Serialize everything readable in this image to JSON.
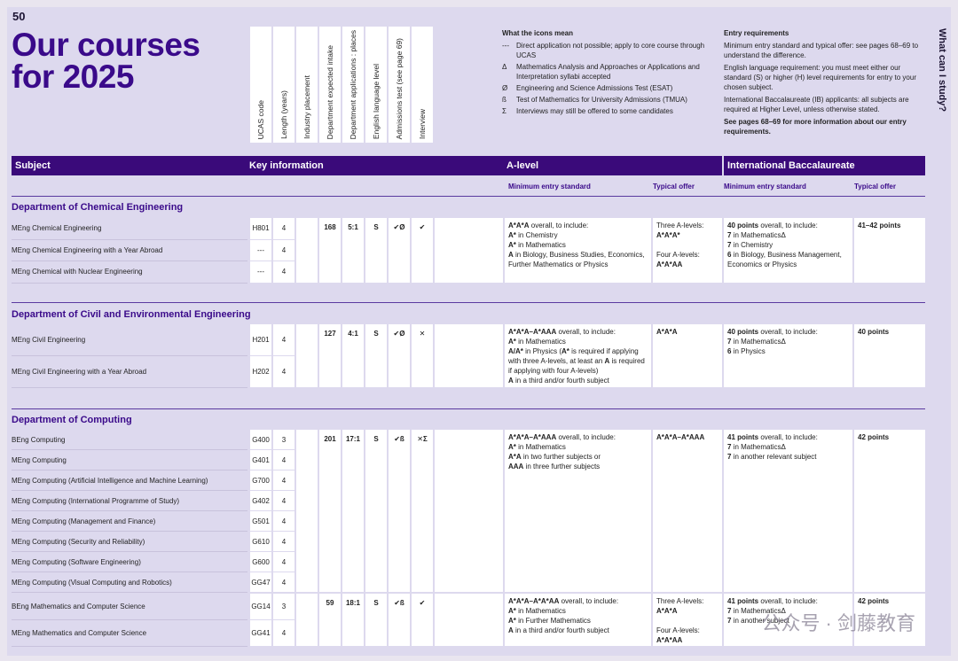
{
  "page_number": "50",
  "title_line1": "Our courses",
  "title_line2": "for 2025",
  "side_title": "What can I study?",
  "column_headers": [
    "UCAS code",
    "Length (years)",
    "Industry placement",
    "Department expected intake",
    "Department applications : places",
    "English language level",
    "Admissions test (see page 69)",
    "Interview"
  ],
  "legend": {
    "heading": "What the icons mean",
    "items": [
      {
        "sym": "---",
        "text": "Direct application not possible; apply to core course through UCAS"
      },
      {
        "sym": "Δ",
        "text": "Mathematics Analysis and Approaches or Applications and Interpretation syllabi accepted"
      },
      {
        "sym": "Ø",
        "text": "Engineering and Science Admissions Test (ESAT)"
      },
      {
        "sym": "ß",
        "text": "Test of Mathematics for University Admissions (TMUA)"
      },
      {
        "sym": "Σ",
        "text": "Interviews may still be offered to some candidates"
      }
    ]
  },
  "entry": {
    "heading": "Entry requirements",
    "p1": "Minimum entry standard and typical offer: see pages 68–69 to understand the difference.",
    "p2": "English language requirement: you must meet either our standard (S) or higher (H) level requirements for entry to your chosen subject.",
    "p3": "International Baccalaureate (IB) applicants: all subjects are required at Higher Level, unless otherwise stated.",
    "p4": "See pages 68–69 for more information about our entry requirements."
  },
  "bars": {
    "subject": "Subject",
    "key_info": "Key information",
    "a_level": "A-level",
    "ib": "International Baccalaureate",
    "min_std": "Minimum entry standard",
    "typ_offer": "Typical offer",
    "ib_min_std": "Minimum entry standard",
    "ib_typ_offer": "Typical offer"
  },
  "depts": [
    {
      "name": "Department of Chemical Engineering",
      "courses": [
        {
          "name": "MEng Chemical Engineering",
          "code": "H801",
          "len": "4"
        },
        {
          "name": "MEng Chemical Engineering with a Year Abroad",
          "code": "---",
          "len": "4"
        },
        {
          "name": "MEng Chemical with Nuclear Engineering",
          "code": "---",
          "len": "4"
        }
      ],
      "intake": "168",
      "ratio": "5:1",
      "eng": "S",
      "test": "✔Ø",
      "interview": "✔",
      "alevel_min": [
        [
          "A*A*A",
          " overall, to include:"
        ],
        [
          "A*",
          " in Chemistry"
        ],
        [
          "A*",
          " in Mathematics"
        ],
        [
          "A",
          " in Biology, Business Studies, Economics, Further Mathematics or Physics"
        ]
      ],
      "alevel_typ": [
        "Three A-levels:",
        "A*A*A*",
        "",
        "Four A-levels:",
        "A*A*AA"
      ],
      "ib_min": [
        [
          "40 points",
          " overall, to include:"
        ],
        [
          "7",
          " in MathematicsΔ"
        ],
        [
          "7",
          " in Chemistry"
        ],
        [
          "6",
          " in Biology, Business Management, Economics or Physics"
        ]
      ],
      "ib_typ": "41–42 points"
    },
    {
      "name": "Department of Civil and Environmental Engineering",
      "courses": [
        {
          "name": "MEng Civil Engineering",
          "code": "H201",
          "len": "4"
        },
        {
          "name": "MEng Civil Engineering with a Year Abroad",
          "code": "H202",
          "len": "4"
        }
      ],
      "intake": "127",
      "ratio": "4:1",
      "eng": "S",
      "test": "✔Ø",
      "interview": "✕",
      "alevel_min": [
        [
          "A*A*A–A*AAA",
          " overall, to include:"
        ],
        [
          "A*",
          " in Mathematics"
        ],
        [
          "A/A*",
          " in Physics ("
        ],
        [
          "A*",
          " is required if applying with three A-levels, at least an "
        ],
        [
          "A",
          " is required if applying with four A-levels)"
        ],
        [
          "A",
          " in a third and/or fourth subject"
        ]
      ],
      "alevel_typ": [
        "A*A*A"
      ],
      "ib_min": [
        [
          "40 points",
          " overall, to include:"
        ],
        [
          "7",
          " in MathematicsΔ"
        ],
        [
          "6",
          " in Physics"
        ]
      ],
      "ib_typ": "40 points"
    },
    {
      "name": "Department of Computing",
      "courses": [
        {
          "name": "BEng Computing",
          "code": "G400",
          "len": "3"
        },
        {
          "name": "MEng Computing",
          "code": "G401",
          "len": "4"
        },
        {
          "name": "MEng Computing (Artificial Intelligence and Machine Learning)",
          "code": "G700",
          "len": "4"
        },
        {
          "name": "MEng Computing (International Programme of Study)",
          "code": "G402",
          "len": "4"
        },
        {
          "name": "MEng Computing (Management and Finance)",
          "code": "G501",
          "len": "4"
        },
        {
          "name": "MEng Computing (Security and Reliability)",
          "code": "G610",
          "len": "4"
        },
        {
          "name": "MEng Computing (Software Engineering)",
          "code": "G600",
          "len": "4"
        },
        {
          "name": "MEng Computing (Visual Computing and Robotics)",
          "code": "GG47",
          "len": "4"
        }
      ],
      "intake": "201",
      "ratio": "17:1",
      "eng": "S",
      "test": "✔ß",
      "interview": "✕Σ",
      "alevel_min": [
        [
          "A*A*A–A*AAA",
          " overall, to include:"
        ],
        [
          "A*",
          " in Mathematics"
        ],
        [
          "A*A",
          " in two further subjects or"
        ],
        [
          "AAA",
          " in three further subjects"
        ]
      ],
      "alevel_typ": [
        "A*A*A–A*AAA"
      ],
      "ib_min": [
        [
          "41 points",
          " overall, to include:"
        ],
        [
          "7",
          " in MathematicsΔ"
        ],
        [
          "7",
          " in another relevant subject"
        ]
      ],
      "ib_typ": "42 points"
    },
    {
      "name": "",
      "courses": [
        {
          "name": "BEng Mathematics and Computer Science",
          "code": "GG14",
          "len": "3"
        },
        {
          "name": "MEng Mathematics and Computer Science",
          "code": "GG41",
          "len": "4"
        }
      ],
      "intake": "59",
      "ratio": "18:1",
      "eng": "S",
      "test": "✔ß",
      "interview": "✔",
      "alevel_min": [
        [
          "A*A*A–A*A*AA",
          " overall, to include:"
        ],
        [
          "A*",
          " in Mathematics"
        ],
        [
          "A*",
          " in Further Mathematics"
        ],
        [
          "A",
          " in a third and/or fourth subject"
        ]
      ],
      "alevel_typ": [
        "Three A-levels:",
        "A*A*A",
        "",
        "Four A-levels:",
        "A*A*AA"
      ],
      "ib_min": [
        [
          "41 points",
          " overall, to include:"
        ],
        [
          "7",
          " in MathematicsΔ"
        ],
        [
          "7",
          " in another subject"
        ]
      ],
      "ib_typ": "42 points"
    }
  ],
  "watermark": "公众号 · 剑藤教育"
}
